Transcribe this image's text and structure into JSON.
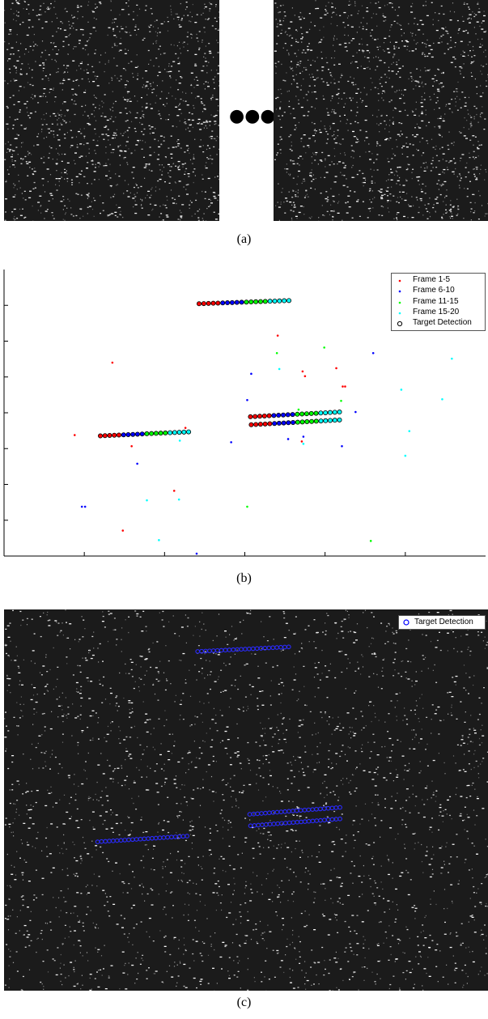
{
  "panel_a": {
    "caption": "(a)",
    "ellipsis": "●●●"
  },
  "panel_b": {
    "caption": "(b)"
  },
  "panel_c": {
    "caption": "(c)",
    "legend": "Target Detection"
  },
  "chart_data": {
    "type": "scatter",
    "xlim": [
      0,
      600
    ],
    "ylim": [
      0,
      360
    ],
    "grid": false,
    "legend_position": "top-right",
    "series": [
      {
        "name": "Frame 1-5",
        "color": "#ff0000",
        "points": [
          [
            88,
            152
          ],
          [
            148,
            32
          ],
          [
            135,
            243
          ],
          [
            159,
            138
          ],
          [
            212,
            82
          ],
          [
            226,
            161
          ],
          [
            341,
            277
          ],
          [
            372,
            232
          ],
          [
            375,
            226
          ],
          [
            414,
            236
          ],
          [
            422,
            213
          ],
          [
            425,
            213
          ],
          [
            371,
            144
          ]
        ]
      },
      {
        "name": "Frame 6-10",
        "color": "#0000ff",
        "points": [
          [
            97,
            62
          ],
          [
            101,
            62
          ],
          [
            166,
            116
          ],
          [
            240,
            3
          ],
          [
            283,
            143
          ],
          [
            303,
            196
          ],
          [
            308,
            229
          ],
          [
            354,
            147
          ],
          [
            373,
            150
          ],
          [
            438,
            181
          ],
          [
            460,
            255
          ],
          [
            421,
            138
          ]
        ]
      },
      {
        "name": "Frame 11-15",
        "color": "#00ff00",
        "points": [
          [
            340,
            255
          ],
          [
            399,
            262
          ],
          [
            367,
            184
          ],
          [
            420,
            195
          ],
          [
            303,
            62
          ],
          [
            457,
            19
          ]
        ]
      },
      {
        "name": "Frame 15-20",
        "color": "#00ffff",
        "points": [
          [
            178,
            70
          ],
          [
            193,
            20
          ],
          [
            218,
            71
          ],
          [
            219,
            145
          ],
          [
            343,
            235
          ],
          [
            373,
            141
          ],
          [
            495,
            209
          ],
          [
            505,
            157
          ],
          [
            500,
            126
          ],
          [
            546,
            197
          ],
          [
            558,
            248
          ]
        ]
      },
      {
        "name": "Target Detection",
        "color": "#000000",
        "marker": "circle",
        "tracks": [
          {
            "x_start": 120,
            "x_end": 230,
            "y_start": 151,
            "y_end": 156
          },
          {
            "x_start": 243,
            "x_end": 355,
            "y_start": 317,
            "y_end": 321
          },
          {
            "x_start": 307,
            "x_end": 418,
            "y_start": 175,
            "y_end": 181
          },
          {
            "x_start": 308,
            "x_end": 418,
            "y_start": 165,
            "y_end": 171
          }
        ]
      }
    ]
  }
}
